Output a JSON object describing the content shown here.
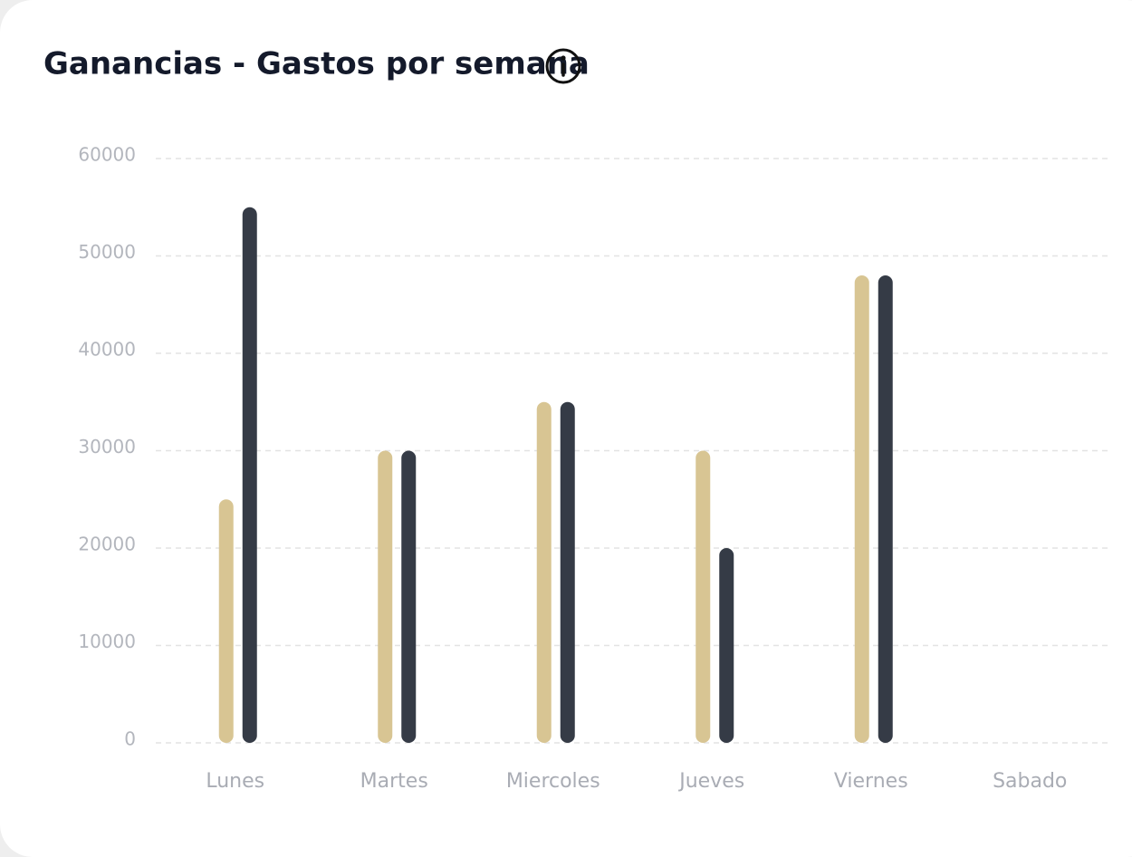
{
  "chart_data": {
    "type": "bar",
    "title": "Ganancias - Gastos por semana",
    "categories": [
      "Lunes",
      "Martes",
      "Miercoles",
      "Jueves",
      "Viernes",
      "Sabado"
    ],
    "series": [
      {
        "color": "#d8c593",
        "values": [
          25000,
          30000,
          35000,
          30000,
          48000,
          null
        ]
      },
      {
        "color": "#353b46",
        "values": [
          55000,
          30000,
          35000,
          20000,
          48000,
          null
        ]
      }
    ],
    "ylim": [
      0,
      60000
    ],
    "yticks": [
      0,
      10000,
      20000,
      30000,
      40000,
      50000,
      60000
    ],
    "grid": true
  }
}
